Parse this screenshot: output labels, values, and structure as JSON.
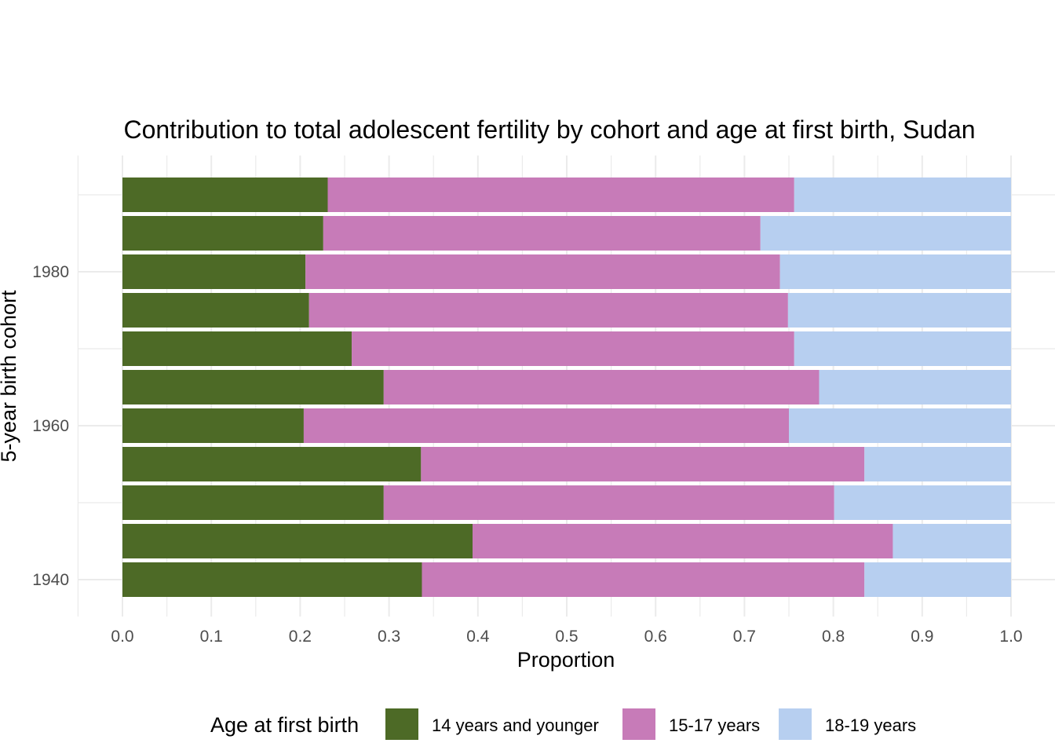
{
  "chart_data": {
    "type": "bar",
    "orientation": "horizontal",
    "stacked": true,
    "title": "Contribution to total adolescent fertility by cohort and age at first birth,  Sudan",
    "xlabel": "Proportion",
    "ylabel": "5-year birth cohort",
    "xlim": [
      0,
      1
    ],
    "xticks": [
      "0.0",
      "0.1",
      "0.2",
      "0.3",
      "0.4",
      "0.5",
      "0.6",
      "0.7",
      "0.8",
      "0.9",
      "1.0"
    ],
    "yticks": [
      "1940",
      "1960",
      "1980"
    ],
    "ylim": [
      1937.5,
      1992.5
    ],
    "grid": true,
    "legend": {
      "title": "Age at first birth",
      "position": "bottom",
      "entries": [
        "14 years and younger",
        "15-17 years",
        "18-19 years"
      ]
    },
    "categories": [
      1940,
      1945,
      1950,
      1955,
      1960,
      1965,
      1970,
      1975,
      1980,
      1985,
      1990
    ],
    "series": [
      {
        "name": "14 years and younger",
        "color": "#4d6a26",
        "values": [
          0.337,
          0.394,
          0.294,
          0.336,
          0.204,
          0.294,
          0.258,
          0.21,
          0.206,
          0.226,
          0.231
        ]
      },
      {
        "name": "15-17 years",
        "color": "#c77bb8",
        "values": [
          0.498,
          0.473,
          0.507,
          0.499,
          0.546,
          0.49,
          0.498,
          0.539,
          0.534,
          0.492,
          0.525
        ]
      },
      {
        "name": "18-19 years",
        "color": "#b7cff0",
        "values": [
          0.165,
          0.133,
          0.199,
          0.165,
          0.25,
          0.216,
          0.244,
          0.251,
          0.26,
          0.282,
          0.244
        ]
      }
    ]
  }
}
